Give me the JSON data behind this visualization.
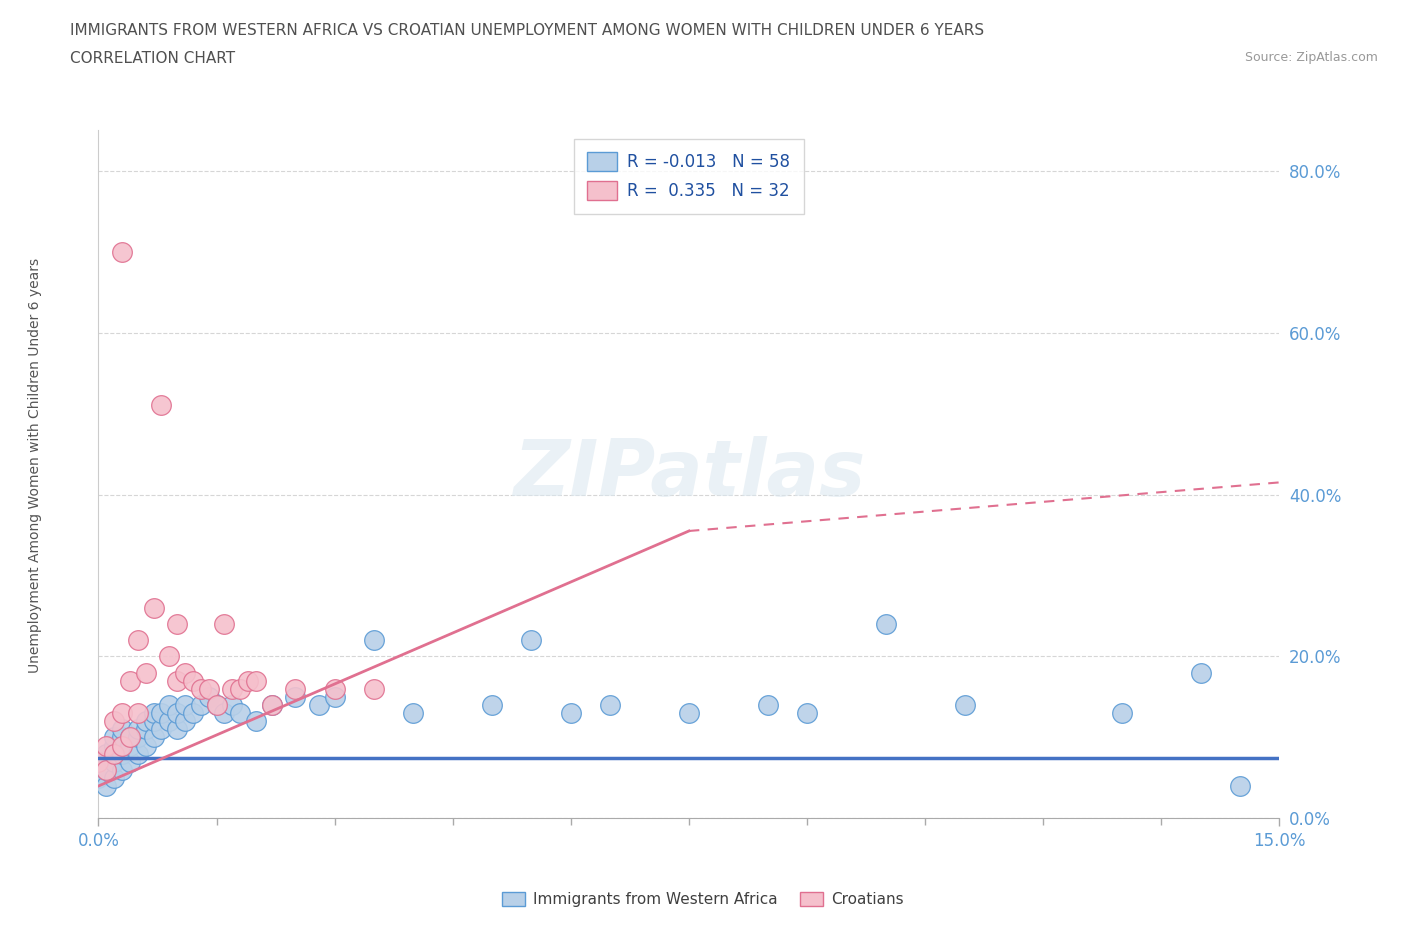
{
  "title_line1": "IMMIGRANTS FROM WESTERN AFRICA VS CROATIAN UNEMPLOYMENT AMONG WOMEN WITH CHILDREN UNDER 6 YEARS",
  "title_line2": "CORRELATION CHART",
  "source": "Source: ZipAtlas.com",
  "ylabel": "Unemployment Among Women with Children Under 6 years",
  "xlim": [
    0.0,
    0.15
  ],
  "ylim": [
    0.0,
    0.85
  ],
  "xtick_positions": [
    0.0,
    0.15
  ],
  "xtick_labels": [
    "0.0%",
    "15.0%"
  ],
  "ytick_values": [
    0.0,
    0.2,
    0.4,
    0.6,
    0.8
  ],
  "ytick_labels": [
    "0.0%",
    "20.0%",
    "40.0%",
    "60.0%",
    "80.0%"
  ],
  "legend_r1": "R = -0.013",
  "legend_n1": "N = 58",
  "legend_r2": "R =  0.335",
  "legend_n2": "N = 32",
  "color_blue_fill": "#b8d0e8",
  "color_blue_edge": "#5b9bd5",
  "color_pink_fill": "#f5c0cc",
  "color_pink_edge": "#e07090",
  "color_line_blue": "#4472c4",
  "color_line_pink": "#e07090",
  "watermark": "ZIPatlas",
  "blue_scatter_x": [
    0.0,
    0.001,
    0.001,
    0.001,
    0.002,
    0.002,
    0.002,
    0.002,
    0.003,
    0.003,
    0.003,
    0.003,
    0.004,
    0.004,
    0.004,
    0.005,
    0.005,
    0.005,
    0.006,
    0.006,
    0.006,
    0.007,
    0.007,
    0.007,
    0.008,
    0.008,
    0.009,
    0.009,
    0.01,
    0.01,
    0.011,
    0.011,
    0.012,
    0.013,
    0.014,
    0.015,
    0.016,
    0.017,
    0.018,
    0.02,
    0.022,
    0.025,
    0.028,
    0.03,
    0.035,
    0.04,
    0.05,
    0.055,
    0.06,
    0.065,
    0.075,
    0.085,
    0.09,
    0.1,
    0.11,
    0.13,
    0.14,
    0.145
  ],
  "blue_scatter_y": [
    0.05,
    0.04,
    0.06,
    0.08,
    0.05,
    0.07,
    0.09,
    0.1,
    0.06,
    0.08,
    0.1,
    0.11,
    0.07,
    0.09,
    0.1,
    0.08,
    0.1,
    0.11,
    0.09,
    0.11,
    0.12,
    0.1,
    0.12,
    0.13,
    0.11,
    0.13,
    0.12,
    0.14,
    0.11,
    0.13,
    0.12,
    0.14,
    0.13,
    0.14,
    0.15,
    0.14,
    0.13,
    0.14,
    0.13,
    0.12,
    0.14,
    0.15,
    0.14,
    0.15,
    0.22,
    0.13,
    0.14,
    0.22,
    0.13,
    0.14,
    0.13,
    0.14,
    0.13,
    0.24,
    0.14,
    0.13,
    0.18,
    0.04
  ],
  "pink_scatter_x": [
    0.0,
    0.001,
    0.001,
    0.002,
    0.002,
    0.003,
    0.003,
    0.003,
    0.004,
    0.004,
    0.005,
    0.005,
    0.006,
    0.007,
    0.008,
    0.009,
    0.01,
    0.01,
    0.011,
    0.012,
    0.013,
    0.014,
    0.015,
    0.016,
    0.017,
    0.018,
    0.019,
    0.02,
    0.022,
    0.025,
    0.03,
    0.035
  ],
  "pink_scatter_y": [
    0.07,
    0.06,
    0.09,
    0.08,
    0.12,
    0.09,
    0.13,
    0.7,
    0.1,
    0.17,
    0.13,
    0.22,
    0.18,
    0.26,
    0.51,
    0.2,
    0.17,
    0.24,
    0.18,
    0.17,
    0.16,
    0.16,
    0.14,
    0.24,
    0.16,
    0.16,
    0.17,
    0.17,
    0.14,
    0.16,
    0.16,
    0.16
  ],
  "background_color": "#ffffff",
  "grid_color": "#cccccc",
  "font_color_title": "#505050",
  "font_color_axis": "#5b9bd5",
  "trendline_blue_x0": 0.0,
  "trendline_blue_x1": 0.15,
  "trendline_blue_y0": 0.075,
  "trendline_blue_y1": 0.075,
  "trendline_pink_solid_x0": 0.0,
  "trendline_pink_solid_x1": 0.075,
  "trendline_pink_solid_y0": 0.04,
  "trendline_pink_solid_y1": 0.355,
  "trendline_pink_dash_x0": 0.075,
  "trendline_pink_dash_x1": 0.15,
  "trendline_pink_dash_y0": 0.355,
  "trendline_pink_dash_y1": 0.415
}
